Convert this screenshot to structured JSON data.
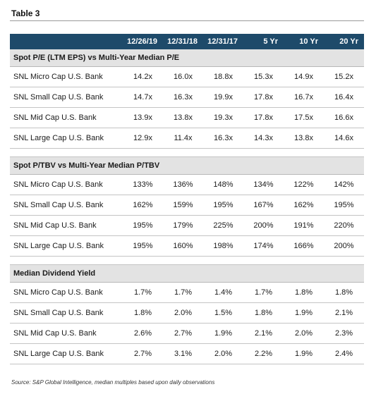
{
  "title": "Table 3",
  "columns": [
    "12/26/19",
    "12/31/18",
    "12/31/17",
    "5 Yr",
    "10 Yr",
    "20 Yr"
  ],
  "sections": [
    {
      "heading": "Spot P/E (LTM EPS) vs Multi-Year Median P/E",
      "rows": [
        {
          "label": "SNL Micro Cap U.S. Bank",
          "values": [
            "14.2x",
            "16.0x",
            "18.8x",
            "15.3x",
            "14.9x",
            "15.2x"
          ]
        },
        {
          "label": "SNL Small Cap U.S. Bank",
          "values": [
            "14.7x",
            "16.3x",
            "19.9x",
            "17.8x",
            "16.7x",
            "16.4x"
          ]
        },
        {
          "label": "SNL Mid Cap U.S. Bank",
          "values": [
            "13.9x",
            "13.8x",
            "19.3x",
            "17.8x",
            "17.5x",
            "16.6x"
          ]
        },
        {
          "label": "SNL Large Cap U.S. Bank",
          "values": [
            "12.9x",
            "11.4x",
            "16.3x",
            "14.3x",
            "13.8x",
            "14.6x"
          ]
        }
      ]
    },
    {
      "heading": "Spot P/TBV vs Multi-Year Median P/TBV",
      "rows": [
        {
          "label": "SNL Micro Cap U.S. Bank",
          "values": [
            "133%",
            "136%",
            "148%",
            "134%",
            "122%",
            "142%"
          ]
        },
        {
          "label": "SNL Small Cap U.S. Bank",
          "values": [
            "162%",
            "159%",
            "195%",
            "167%",
            "162%",
            "195%"
          ]
        },
        {
          "label": "SNL Mid Cap U.S. Bank",
          "values": [
            "195%",
            "179%",
            "225%",
            "200%",
            "191%",
            "220%"
          ]
        },
        {
          "label": "SNL Large Cap U.S. Bank",
          "values": [
            "195%",
            "160%",
            "198%",
            "174%",
            "166%",
            "200%"
          ]
        }
      ]
    },
    {
      "heading": "Median Dividend Yield",
      "rows": [
        {
          "label": "SNL Micro Cap U.S. Bank",
          "values": [
            "1.7%",
            "1.7%",
            "1.4%",
            "1.7%",
            "1.8%",
            "1.8%"
          ]
        },
        {
          "label": "SNL Small Cap U.S. Bank",
          "values": [
            "1.8%",
            "2.0%",
            "1.5%",
            "1.8%",
            "1.9%",
            "2.1%"
          ]
        },
        {
          "label": "SNL Mid Cap U.S. Bank",
          "values": [
            "2.6%",
            "2.7%",
            "1.9%",
            "2.1%",
            "2.0%",
            "2.3%"
          ]
        },
        {
          "label": "SNL Large Cap U.S. Bank",
          "values": [
            "2.7%",
            "3.1%",
            "2.0%",
            "2.2%",
            "1.9%",
            "2.4%"
          ]
        }
      ]
    }
  ],
  "source": "Source: S&P Global Intelligence, median multiples based upon daily observations"
}
